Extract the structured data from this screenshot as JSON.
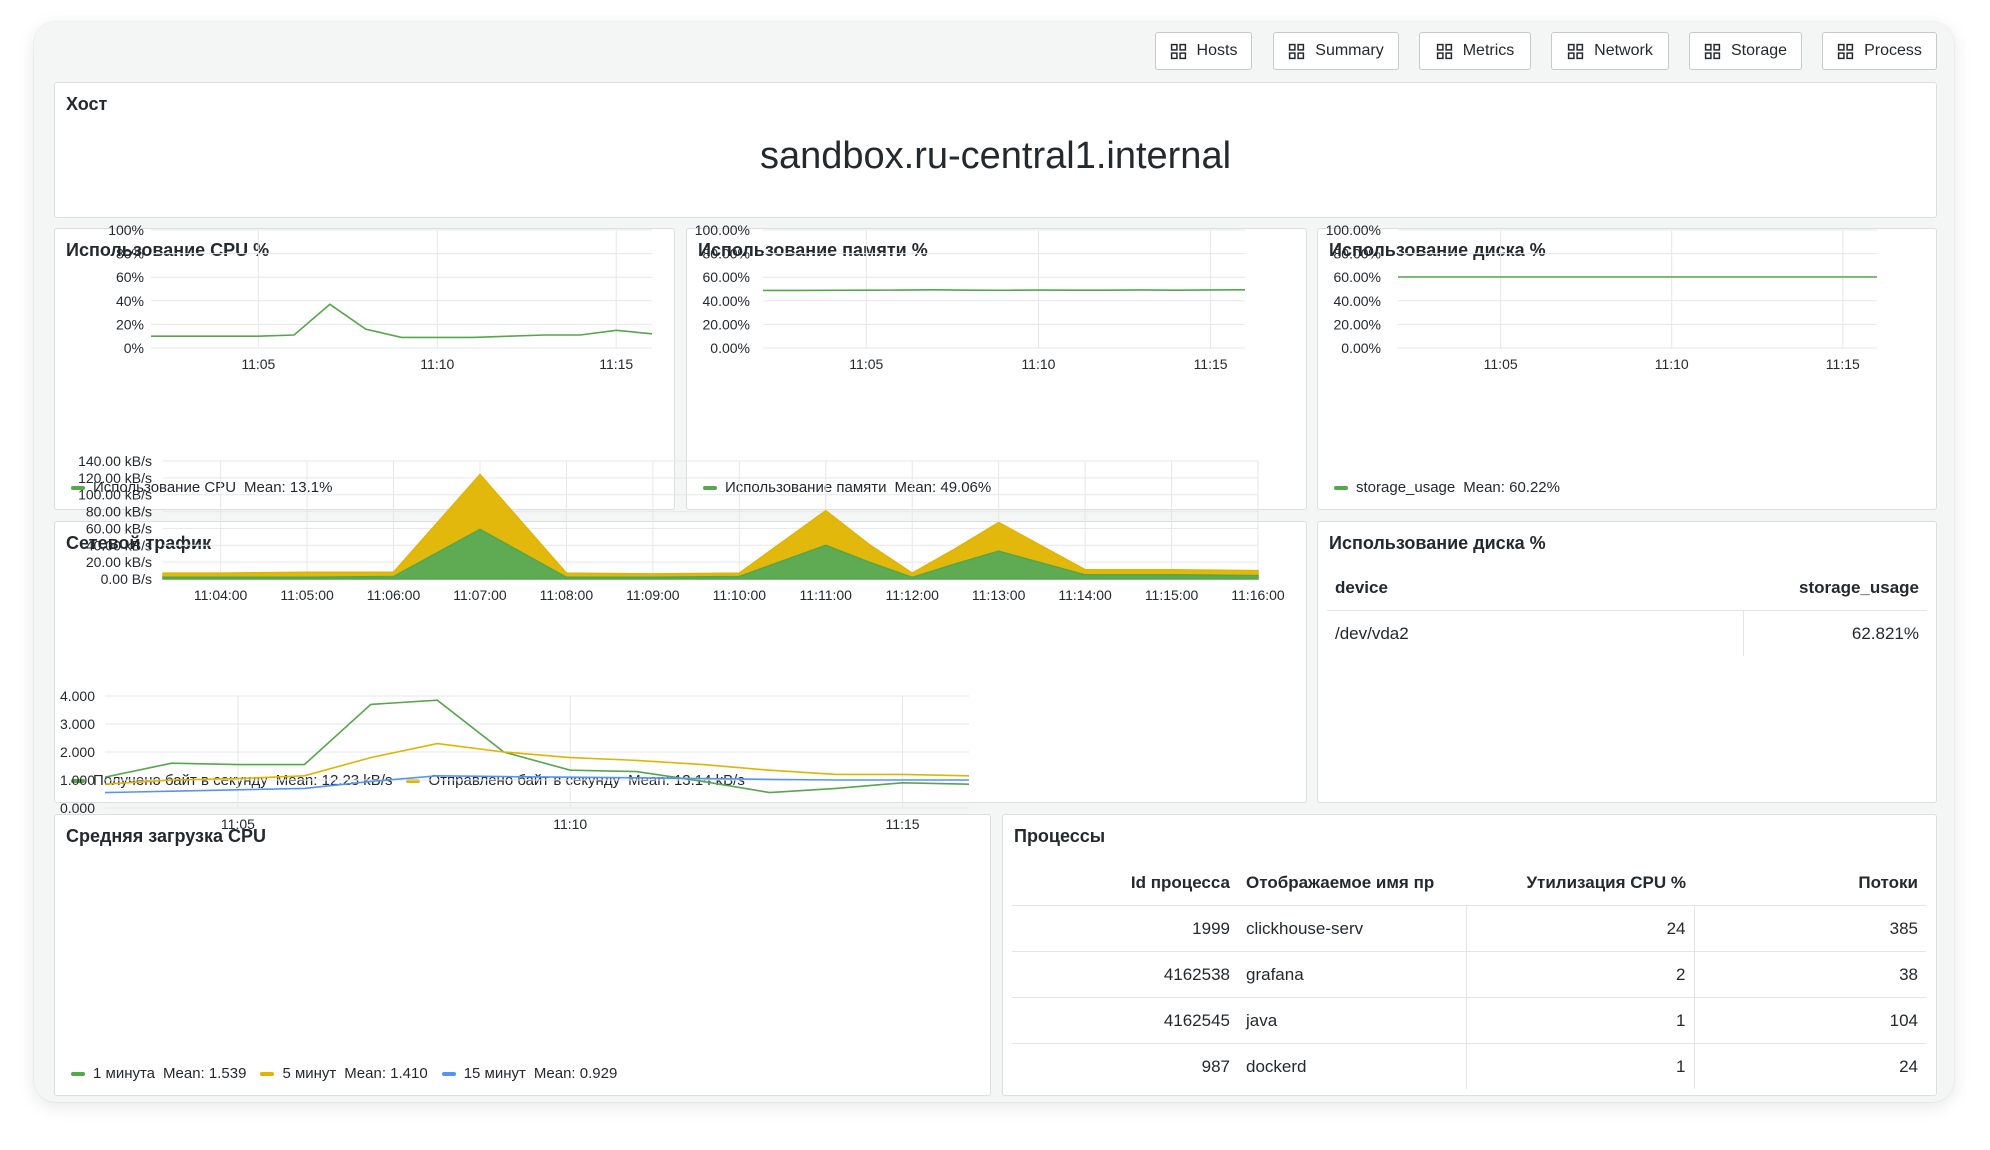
{
  "nav": {
    "buttons": [
      "Hosts",
      "Summary",
      "Metrics",
      "Network",
      "Storage",
      "Process"
    ]
  },
  "host_panel": {
    "title": "Хост",
    "value": "sandbox.ru-central1.internal"
  },
  "cpu_panel": {
    "title": "Использование CPU %",
    "legend": {
      "name": "Использование CPU",
      "mean": "Mean: 13.1%"
    }
  },
  "mem_panel": {
    "title": "Использование памяти %",
    "legend": {
      "name": "Использование памяти",
      "mean": "Mean: 49.06%"
    }
  },
  "disk_panel": {
    "title": "Использование диска %",
    "legend": {
      "name": "storage_usage",
      "mean": "Mean: 60.22%"
    }
  },
  "net_panel": {
    "title": "Сетевой трафик",
    "legend": [
      {
        "name": "Получено байт в секунду",
        "mean": "Mean: 12.23 kB/s"
      },
      {
        "name": "Отправлено байт в секунду",
        "mean": "Mean: 13.14 kB/s"
      }
    ]
  },
  "disk_table_panel": {
    "title": "Использование диска %",
    "columns": [
      "device",
      "storage_usage"
    ],
    "rows": [
      [
        "/dev/vda2",
        "62.821%"
      ]
    ]
  },
  "load_panel": {
    "title": "Средняя загрузка CPU",
    "legend": [
      {
        "name": "1 минута",
        "mean": "Mean: 1.539"
      },
      {
        "name": "5 минут",
        "mean": "Mean: 1.410"
      },
      {
        "name": "15 минут",
        "mean": "Mean: 0.929"
      }
    ]
  },
  "proc_panel": {
    "title": "Процессы",
    "columns": [
      "Id процесса",
      "Отображаемое имя пр",
      "Утилизация CPU %",
      "Потоки"
    ],
    "rows": [
      [
        "1999",
        "clickhouse-serv",
        "24",
        "385"
      ],
      [
        "4162538",
        "grafana",
        "2",
        "38"
      ],
      [
        "4162545",
        "java",
        "1",
        "104"
      ],
      [
        "987",
        "dockerd",
        "1",
        "24"
      ]
    ]
  },
  "colors": {
    "green": "#56a64b",
    "yellow": "#e0b400",
    "blue": "#5794f2",
    "grid": "#e6e7e8",
    "text": "#24292e"
  },
  "chart_data": [
    {
      "type": "line",
      "title": "Использование CPU %",
      "x": [
        "11:02",
        "11:03",
        "11:04",
        "11:05",
        "11:06",
        "11:07",
        "11:08",
        "11:09",
        "11:10",
        "11:11",
        "11:12",
        "11:13",
        "11:14",
        "11:15",
        "11:16"
      ],
      "x_ticks": [
        "11:05",
        "11:10",
        "11:15"
      ],
      "y_ticks": [
        "0%",
        "20%",
        "40%",
        "60%",
        "80%",
        "100%"
      ],
      "ylim": [
        0,
        100
      ],
      "series": [
        {
          "name": "Использование CPU",
          "color": "#56a64b",
          "values": [
            10,
            10,
            10,
            10,
            11,
            37,
            16,
            9,
            9,
            9,
            10,
            11,
            11,
            15,
            12
          ]
        }
      ]
    },
    {
      "type": "line",
      "title": "Использование памяти %",
      "x": [
        "11:02",
        "11:03",
        "11:04",
        "11:05",
        "11:06",
        "11:07",
        "11:08",
        "11:09",
        "11:10",
        "11:11",
        "11:12",
        "11:13",
        "11:14",
        "11:15",
        "11:16"
      ],
      "x_ticks": [
        "11:05",
        "11:10",
        "11:15"
      ],
      "y_ticks": [
        "0.00%",
        "20.00%",
        "40.00%",
        "60.00%",
        "80.00%",
        "100.00%"
      ],
      "ylim": [
        0,
        100
      ],
      "series": [
        {
          "name": "Использование памяти",
          "color": "#56a64b",
          "values": [
            48.8,
            48.8,
            48.9,
            49.0,
            49.1,
            49.3,
            49.0,
            48.9,
            49.1,
            49.0,
            49.0,
            49.2,
            49.0,
            49.2,
            49.3
          ]
        }
      ]
    },
    {
      "type": "line",
      "title": "Использование диска %",
      "x": [
        "11:02",
        "11:03",
        "11:04",
        "11:05",
        "11:06",
        "11:07",
        "11:08",
        "11:09",
        "11:10",
        "11:11",
        "11:12",
        "11:13",
        "11:14",
        "11:15",
        "11:16"
      ],
      "x_ticks": [
        "11:05",
        "11:10",
        "11:15"
      ],
      "y_ticks": [
        "0.00%",
        "20.00%",
        "40.00%",
        "60.00%",
        "80.00%",
        "100.00%"
      ],
      "ylim": [
        0,
        100
      ],
      "series": [
        {
          "name": "storage_usage",
          "color": "#56a64b",
          "values": [
            60.2,
            60.2,
            60.2,
            60.2,
            60.2,
            60.2,
            60.2,
            60.2,
            60.2,
            60.2,
            60.2,
            60.2,
            60.2,
            60.2,
            60.2
          ]
        }
      ]
    },
    {
      "type": "area",
      "stacked": true,
      "title": "Сетевой трафик",
      "x": [
        "11:03:20",
        "11:04:00",
        "11:05:00",
        "11:06:00",
        "11:07:00",
        "11:08:00",
        "11:09:00",
        "11:10:00",
        "11:11:00",
        "11:11:30",
        "11:12:00",
        "11:12:30",
        "11:13:00",
        "11:14:00",
        "11:15:00",
        "11:16:00"
      ],
      "x_ticks": [
        "11:04:00",
        "11:05:00",
        "11:06:00",
        "11:07:00",
        "11:08:00",
        "11:09:00",
        "11:10:00",
        "11:11:00",
        "11:12:00",
        "11:13:00",
        "11:14:00",
        "11:15:00",
        "11:16:00"
      ],
      "y_ticks": [
        "0.00 B/s",
        "20.00 kB/s",
        "40.00 kB/s",
        "60.00 kB/s",
        "80.00 kB/s",
        "100.00 kB/s",
        "120.00 kB/s",
        "140.00 kB/s"
      ],
      "ylim": [
        0,
        140
      ],
      "y_unit": "kB/s",
      "series": [
        {
          "name": "Получено байт в секунду",
          "color": "#56a64b",
          "values": [
            2,
            2,
            2,
            3,
            59,
            2,
            2,
            3,
            40,
            20,
            2,
            18,
            33,
            5,
            5,
            4
          ]
        },
        {
          "name": "Отправлено байт в секунду",
          "color": "#e0b400",
          "values": [
            5,
            5,
            6,
            5,
            65,
            5,
            4,
            4,
            41,
            21,
            5,
            18,
            34,
            6,
            6,
            6
          ]
        }
      ]
    },
    {
      "type": "line",
      "title": "Средняя загрузка CPU",
      "x": [
        "11:03",
        "11:04",
        "11:05",
        "11:06",
        "11:07",
        "11:08",
        "11:09",
        "11:10",
        "11:11",
        "11:12",
        "11:13",
        "11:14",
        "11:15",
        "11:16"
      ],
      "x_ticks": [
        "11:05",
        "11:10",
        "11:15"
      ],
      "y_ticks": [
        "0.000",
        "1.000",
        "2.000",
        "3.000",
        "4.000"
      ],
      "ylim": [
        0,
        4
      ],
      "series": [
        {
          "name": "1 минута",
          "color": "#56a64b",
          "values": [
            1.1,
            1.6,
            1.55,
            1.55,
            3.7,
            3.85,
            2.0,
            1.35,
            1.3,
            0.95,
            0.55,
            0.7,
            0.9,
            0.85
          ]
        },
        {
          "name": "5 минут",
          "color": "#e0b400",
          "values": [
            0.85,
            1.0,
            1.05,
            1.15,
            1.8,
            2.3,
            2.0,
            1.8,
            1.7,
            1.55,
            1.35,
            1.2,
            1.2,
            1.15
          ]
        },
        {
          "name": "15 минут",
          "color": "#5794f2",
          "values": [
            0.55,
            0.6,
            0.65,
            0.7,
            0.95,
            1.15,
            1.12,
            1.1,
            1.08,
            1.05,
            1.02,
            1.0,
            1.0,
            1.0
          ]
        }
      ]
    }
  ]
}
